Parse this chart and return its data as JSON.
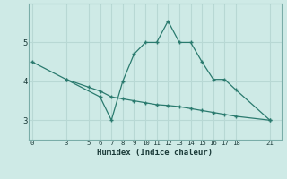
{
  "line1_x": [
    0,
    3,
    5,
    6,
    7,
    8,
    9,
    10,
    11,
    12,
    13,
    14,
    15,
    16,
    17,
    18,
    21
  ],
  "line1_y": [
    4.5,
    4.05,
    3.85,
    3.75,
    3.6,
    3.55,
    3.5,
    3.45,
    3.4,
    3.38,
    3.35,
    3.3,
    3.25,
    3.2,
    3.15,
    3.1,
    3.0
  ],
  "line2_x": [
    3,
    6,
    7,
    8,
    9,
    10,
    11,
    12,
    13,
    14,
    15,
    16,
    17,
    18,
    21
  ],
  "line2_y": [
    4.05,
    3.6,
    3.0,
    4.0,
    4.7,
    5.0,
    5.0,
    5.55,
    5.0,
    5.0,
    4.5,
    4.05,
    4.05,
    3.78,
    3.0
  ],
  "color": "#2a7a6e",
  "bg_color": "#ceeae6",
  "grid_color": "#b8d8d4",
  "xlabel": "Humidex (Indice chaleur)",
  "xticks": [
    0,
    3,
    5,
    6,
    7,
    8,
    9,
    10,
    11,
    12,
    13,
    14,
    15,
    16,
    17,
    18,
    21
  ],
  "yticks": [
    3,
    4,
    5
  ],
  "xlim": [
    -0.3,
    22
  ],
  "ylim": [
    2.5,
    6.0
  ],
  "spine_color": "#7aada8"
}
